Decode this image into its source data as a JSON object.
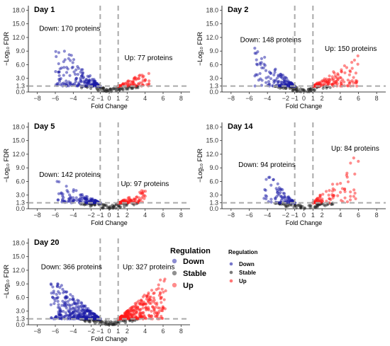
{
  "chart_data": [
    {
      "type": "scatter",
      "title": "Day 1",
      "xlabel": "Fold Change",
      "ylabel": "−Log₁₀ FDR",
      "xticks": [
        "−8",
        "−6",
        "−4",
        "−2",
        "−1",
        "0",
        "1",
        "2",
        "4",
        "6",
        "8"
      ],
      "yticks": [
        "0.0",
        "1.3",
        "3.0",
        "6.0",
        "9.0",
        "12.0",
        "15.0",
        "18.0"
      ],
      "xlim": [
        -9,
        9
      ],
      "ylim": [
        0,
        19
      ],
      "thresholds": {
        "x": [
          -1,
          1
        ],
        "y": 1.3
      },
      "annotations": {
        "down": "Down: 170 proteins",
        "up": "Up: 77 proteins"
      },
      "counts": {
        "down": 170,
        "up": 77,
        "stable": 70
      },
      "spread": {
        "down_x": [
          -6.0,
          -1.0
        ],
        "down_ymax": 11.5,
        "up_x": [
          1.0,
          4.5
        ],
        "up_ymax": 4.8
      }
    },
    {
      "type": "scatter",
      "title": "Day 2",
      "xlabel": "Fold Change",
      "ylabel": "−Log₁₀ FDR",
      "xticks": [
        "−8",
        "−6",
        "−4",
        "−2",
        "−1",
        "0",
        "1",
        "2",
        "4",
        "6",
        "8"
      ],
      "yticks": [
        "0.0",
        "1.3",
        "3.0",
        "6.0",
        "9.0",
        "12.0",
        "15.0",
        "18.0"
      ],
      "xlim": [
        -9,
        9
      ],
      "ylim": [
        0,
        19
      ],
      "thresholds": {
        "x": [
          -1,
          1
        ],
        "y": 1.3
      },
      "annotations": {
        "down": "Down: 148 proteins",
        "up": "Up: 150 proteins"
      },
      "counts": {
        "down": 148,
        "up": 150,
        "stable": 70
      },
      "spread": {
        "down_x": [
          -5.5,
          -1.0
        ],
        "down_ymax": 9.6,
        "up_x": [
          1.0,
          6.0
        ],
        "up_ymax": 8.0
      }
    },
    {
      "type": "scatter",
      "title": "Day 5",
      "xlabel": "Fold Change",
      "ylabel": "−Log₁₀ FDR",
      "xticks": [
        "−8",
        "−6",
        "−4",
        "−2",
        "−1",
        "0",
        "1",
        "2",
        "4",
        "6",
        "8"
      ],
      "yticks": [
        "0.0",
        "1.3",
        "3.0",
        "6.0",
        "9.0",
        "12.0",
        "15.0",
        "18.0"
      ],
      "xlim": [
        -9,
        9
      ],
      "ylim": [
        0,
        19
      ],
      "thresholds": {
        "x": [
          -1,
          1
        ],
        "y": 1.3
      },
      "annotations": {
        "down": "Down: 142 proteins",
        "up": "Up: 97 proteins"
      },
      "counts": {
        "down": 142,
        "up": 97,
        "stable": 70
      },
      "spread": {
        "down_x": [
          -5.8,
          -1.0
        ],
        "down_ymax": 6.0,
        "up_x": [
          1.0,
          4.2
        ],
        "up_ymax": 4.5
      }
    },
    {
      "type": "scatter",
      "title": "Day 14",
      "xlabel": "Fold Change",
      "ylabel": "−Log₁₀ FDR",
      "xticks": [
        "−8",
        "−6",
        "−4",
        "−2",
        "−1",
        "0",
        "1",
        "2",
        "4",
        "6",
        "8"
      ],
      "yticks": [
        "0.0",
        "1.3",
        "3.0",
        "6.0",
        "9.0",
        "12.0",
        "15.0",
        "18.0"
      ],
      "xlim": [
        -9,
        9
      ],
      "ylim": [
        0,
        19
      ],
      "thresholds": {
        "x": [
          -1,
          1
        ],
        "y": 1.3
      },
      "annotations": {
        "down": "Down: 94 proteins",
        "up": "Up: 84 proteins"
      },
      "counts": {
        "down": 94,
        "up": 84,
        "stable": 70
      },
      "spread": {
        "down_x": [
          -4.5,
          -1.0
        ],
        "down_ymax": 8.8,
        "up_x": [
          1.0,
          6.0
        ],
        "up_ymax": 12.0
      }
    },
    {
      "type": "scatter",
      "title": "Day 20",
      "xlabel": "Fold Change",
      "ylabel": "−Log₁₀ FDR",
      "xticks": [
        "−8",
        "−6",
        "−4",
        "−2",
        "−1",
        "0",
        "1",
        "2",
        "4",
        "6",
        "8"
      ],
      "yticks": [
        "0.0",
        "1.3",
        "3.0",
        "6.0",
        "9.0",
        "12.0",
        "15.0",
        "18.0"
      ],
      "xlim": [
        -9,
        9
      ],
      "ylim": [
        0,
        19
      ],
      "thresholds": {
        "x": [
          -1,
          1
        ],
        "y": 1.3
      },
      "annotations": {
        "down": "Down: 366 proteins",
        "up": "Up: 327 proteins"
      },
      "counts": {
        "down": 366,
        "up": 327,
        "stable": 90
      },
      "spread": {
        "down_x": [
          -6.5,
          -1.0
        ],
        "down_ymax": 10.5,
        "up_x": [
          1.0,
          6.3
        ],
        "up_ymax": 10.5
      }
    }
  ],
  "legends": [
    {
      "title": "Regulation",
      "items": [
        "Down",
        "Stable",
        "Up"
      ],
      "style": "large"
    },
    {
      "title": "Regulation",
      "items": [
        "Down",
        "Stable",
        "Up"
      ],
      "style": "small"
    }
  ],
  "colors": {
    "down": "#1a1aa6",
    "stable": "#222222",
    "up": "#ff1a1a",
    "threshold": "#aaaaaa"
  }
}
